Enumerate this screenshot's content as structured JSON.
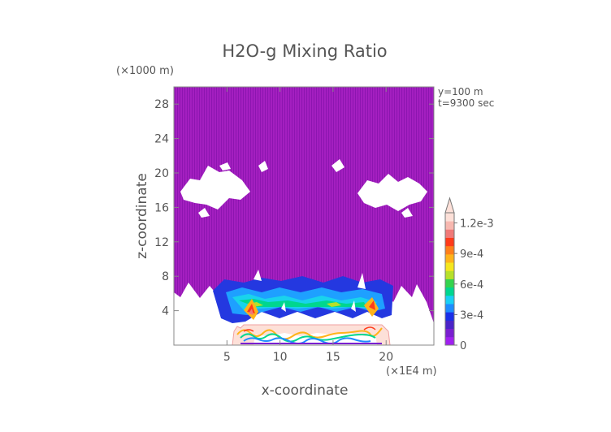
{
  "chart_data": {
    "type": "heatmap",
    "title": "H2O-g Mixing Ratio",
    "xlabel": "x-coordinate",
    "ylabel": "z-coordinate",
    "x_unit": "(×1E4 m)",
    "y_unit": "(×1000 m)",
    "annotations": [
      "y=100 m",
      "t=9300 sec"
    ],
    "xlim": [
      0,
      24.5
    ],
    "ylim": [
      0,
      30
    ],
    "xticks": [
      5,
      10,
      15,
      20
    ],
    "yticks": [
      4,
      8,
      12,
      16,
      20,
      24,
      28
    ],
    "colorbar": {
      "ticks": [
        {
          "value": 0,
          "label": "0"
        },
        {
          "value": 0.0003,
          "label": "3e-4"
        },
        {
          "value": 0.0006,
          "label": "6e-4"
        },
        {
          "value": 0.0009,
          "label": "9e-4"
        },
        {
          "value": 0.0012,
          "label": "1.2e-3"
        }
      ],
      "min": 0,
      "max": 0.0013,
      "extend": "max",
      "colors": [
        "#a020f0",
        "#7a1fd0",
        "#4b24c8",
        "#1a2fe8",
        "#1e8cff",
        "#19d0f5",
        "#00d68f",
        "#34d34e",
        "#b6e02a",
        "#f5e61e",
        "#ffb31a",
        "#ff7f1a",
        "#ff3b1a",
        "#f07a78",
        "#f8b8b0",
        "#fde0d8"
      ]
    },
    "field": {
      "fill_color": "#a41fc0",
      "regions": [
        {
          "name": "upper-layer",
          "x": [
            0,
            24.5
          ],
          "z": [
            7,
            30
          ]
        },
        {
          "name": "moist-cells",
          "x": [
            5.5,
            20.5
          ],
          "z": [
            2.8,
            6.8
          ],
          "max_value": 0.0007
        },
        {
          "name": "surface-core",
          "x": [
            5.8,
            20.2
          ],
          "z": [
            0,
            2.4
          ],
          "max_value": 0.0013
        }
      ]
    }
  }
}
